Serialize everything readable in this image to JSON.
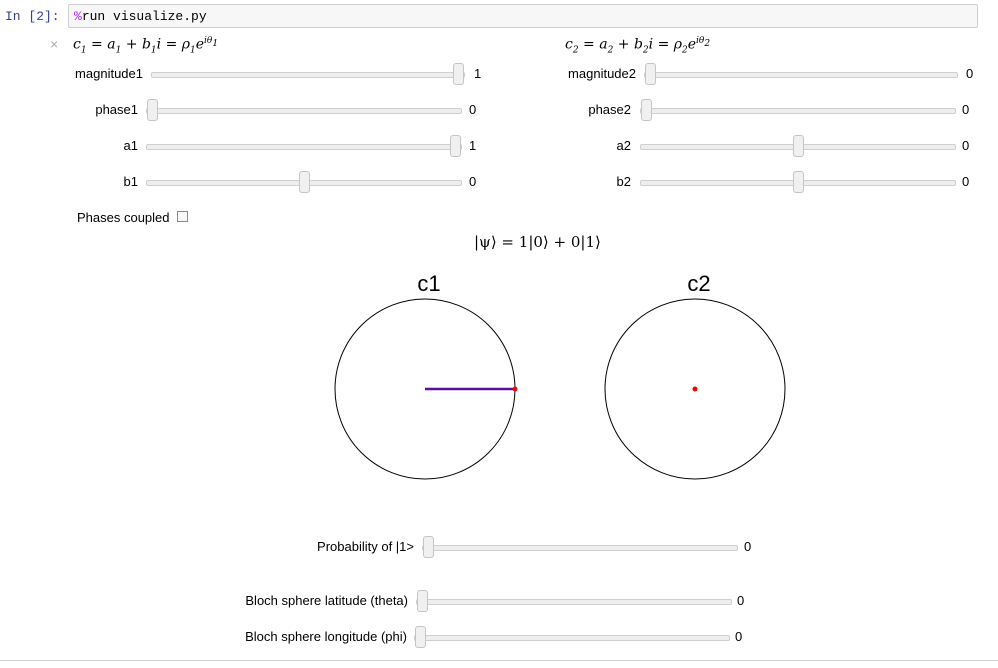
{
  "cell": {
    "prompt": "In [2]:",
    "magic": "%",
    "code": "run visualize.py"
  },
  "close_symbol": "×",
  "formula1": {
    "c": "c",
    "n": "1",
    "a": "a",
    "b": "b",
    "i": "i",
    "rho": "ρ",
    "e": "e",
    "theta": "iθ"
  },
  "formula2": {
    "c": "c",
    "n": "2",
    "a": "a",
    "b": "b",
    "i": "i",
    "rho": "ρ",
    "e": "e",
    "theta": "iθ"
  },
  "sliders_left": [
    {
      "label": "magnitude1",
      "value": "1",
      "fraction": 1.0
    },
    {
      "label": "phase1",
      "value": "0",
      "fraction": 0.0
    },
    {
      "label": "a1",
      "value": "1",
      "fraction": 1.0
    },
    {
      "label": "b1",
      "value": "0",
      "fraction": 0.5
    }
  ],
  "sliders_right": [
    {
      "label": "magnitude2",
      "value": "0",
      "fraction": 0.0
    },
    {
      "label": "phase2",
      "value": "0",
      "fraction": 0.0
    },
    {
      "label": "a2",
      "value": "0",
      "fraction": 0.5
    },
    {
      "label": "b2",
      "value": "0",
      "fraction": 0.5
    }
  ],
  "phases_coupled": {
    "label": "Phases coupled",
    "checked": false
  },
  "state_formula": "|ψ⟩ = 1|0⟩ + 0|1⟩",
  "plots": {
    "c1": {
      "title": "c1",
      "re": 1,
      "im": 0
    },
    "c2": {
      "title": "c2",
      "re": 0,
      "im": 0
    }
  },
  "colors": {
    "vector": "#5b0e9e",
    "point": "#ff0000"
  },
  "bottom_sliders": [
    {
      "label": "Probability of |1>",
      "value": "0",
      "fraction": 0.0
    },
    {
      "label": "Bloch sphere latitude (theta)",
      "value": "0",
      "fraction": 0.0
    },
    {
      "label": "Bloch sphere longitude (phi)",
      "value": "0",
      "fraction": 0.0
    }
  ]
}
